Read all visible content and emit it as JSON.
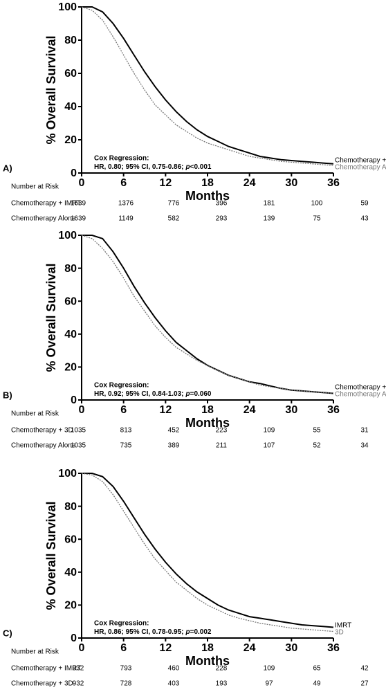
{
  "chart_data": [
    {
      "type": "line",
      "panel": "A)",
      "ylabel": "% Overall  Survival",
      "xlabel": "Months",
      "xlim": [
        0,
        36
      ],
      "ylim": [
        0,
        100
      ],
      "xticks": [
        0,
        6,
        12,
        18,
        24,
        30,
        36
      ],
      "yticks": [
        0,
        20,
        40,
        60,
        80,
        100
      ],
      "x": [
        0,
        1.5,
        3,
        4.5,
        6,
        7.5,
        9,
        10.5,
        12,
        13.5,
        15,
        16.5,
        18,
        19.5,
        21,
        22.5,
        24,
        25.5,
        27,
        28.5,
        30,
        31.5,
        33,
        34.5,
        36
      ],
      "series": [
        {
          "name": "Chemotherapy + IMRT",
          "color": "#000000",
          "values": [
            100,
            100,
            97,
            90,
            81,
            71,
            61,
            52,
            44,
            37,
            31,
            26,
            22,
            19,
            16,
            14,
            12,
            10,
            9,
            8,
            7.5,
            7,
            6.5,
            6,
            5.5
          ]
        },
        {
          "name": "Chemotherapy Alone",
          "color": "#777777",
          "values": [
            100,
            98,
            92,
            82,
            71,
            60,
            50,
            41,
            35,
            29,
            25,
            21,
            18,
            16,
            14,
            12,
            10,
            9,
            8,
            7,
            6.5,
            6,
            5.5,
            5,
            4.5
          ]
        }
      ],
      "annotation": {
        "title": "Cox Regression:",
        "text": [
          "HR, 0.80; 95% CI, 0.75-0.86;",
          "p",
          "<0.001"
        ]
      },
      "risk_table": {
        "title": "Number at Risk",
        "rows": [
          {
            "name": "Chemotherapy + IMRT",
            "values": [
              1639,
              1376,
              776,
              396,
              181,
              100,
              59
            ]
          },
          {
            "name": "Chemotherapy Alone",
            "values": [
              1639,
              1149,
              582,
              293,
              139,
              75,
              43
            ]
          }
        ]
      }
    },
    {
      "type": "line",
      "panel": "B)",
      "ylabel": "% Overall  Survival",
      "xlabel": "Months",
      "xlim": [
        0,
        36
      ],
      "ylim": [
        0,
        100
      ],
      "xticks": [
        0,
        6,
        12,
        18,
        24,
        30,
        36
      ],
      "yticks": [
        0,
        20,
        40,
        60,
        80,
        100
      ],
      "x": [
        0,
        1.5,
        3,
        4.5,
        6,
        7.5,
        9,
        10.5,
        12,
        13.5,
        15,
        16.5,
        18,
        19.5,
        21,
        22.5,
        24,
        25.5,
        27,
        28.5,
        30,
        31.5,
        33,
        34.5,
        36
      ],
      "series": [
        {
          "name": "Chemotherapy + 3D",
          "color": "#000000",
          "values": [
            100,
            100,
            98,
            90,
            80,
            69,
            59,
            50,
            42,
            35,
            30,
            25,
            21,
            18,
            15,
            13,
            11,
            10,
            8.5,
            7,
            6,
            5.5,
            5,
            4.5,
            4
          ]
        },
        {
          "name": "Chemotherapy Alone",
          "color": "#777777",
          "values": [
            100,
            98,
            92,
            84,
            74,
            63,
            54,
            45,
            38,
            32,
            28,
            24,
            21,
            18,
            15,
            13,
            11,
            9,
            8,
            7,
            6,
            5.5,
            5,
            4.5,
            4
          ]
        }
      ],
      "annotation": {
        "title": "Cox Regression:",
        "text": [
          "HR, 0.92; 95% CI, 0.84-1.03;",
          "p",
          "=0.060"
        ]
      },
      "risk_table": {
        "title": "Number at Risk",
        "rows": [
          {
            "name": "Chemotherapy + 3D",
            "values": [
              1035,
              813,
              452,
              223,
              109,
              55,
              31
            ]
          },
          {
            "name": "Chemotherapy Alone",
            "values": [
              1035,
              735,
              389,
              211,
              107,
              52,
              34
            ]
          }
        ]
      }
    },
    {
      "type": "line",
      "panel": "C)",
      "ylabel": "% Overall  Survival",
      "xlabel": "Months",
      "xlim": [
        0,
        36
      ],
      "ylim": [
        0,
        100
      ],
      "xticks": [
        0,
        6,
        12,
        18,
        24,
        30,
        36
      ],
      "yticks": [
        0,
        20,
        40,
        60,
        80,
        100
      ],
      "x": [
        0,
        1.5,
        3,
        4.5,
        6,
        7.5,
        9,
        10.5,
        12,
        13.5,
        15,
        16.5,
        18,
        19.5,
        21,
        22.5,
        24,
        25.5,
        27,
        28.5,
        30,
        31.5,
        33,
        34.5,
        36
      ],
      "series": [
        {
          "name": "IMRT",
          "color": "#000000",
          "values": [
            100,
            100,
            98,
            92,
            83,
            73,
            63,
            54,
            46,
            39,
            33,
            28,
            24,
            20,
            17,
            15,
            13,
            12,
            11,
            10,
            9,
            8,
            7.5,
            7,
            6.5
          ]
        },
        {
          "name": "3D",
          "color": "#777777",
          "values": [
            100,
            99,
            95,
            87,
            77,
            67,
            57,
            48,
            41,
            34,
            29,
            24,
            20,
            17,
            14,
            12,
            10.5,
            9,
            8,
            7,
            6,
            5.5,
            5,
            4.5,
            4
          ]
        }
      ],
      "annotation": {
        "title": "Cox Regression:",
        "text": [
          "HR, 0.86; 95% CI, 0.78-0.95;",
          "p",
          "=0.002"
        ]
      },
      "risk_table": {
        "title": "Number at Risk",
        "rows": [
          {
            "name": "Chemotherapy + IMRT",
            "values": [
              932,
              793,
              460,
              228,
              109,
              65,
              42
            ]
          },
          {
            "name": "Chemotherapy + 3D",
            "values": [
              932,
              728,
              403,
              193,
              97,
              49,
              27
            ]
          }
        ]
      }
    }
  ]
}
